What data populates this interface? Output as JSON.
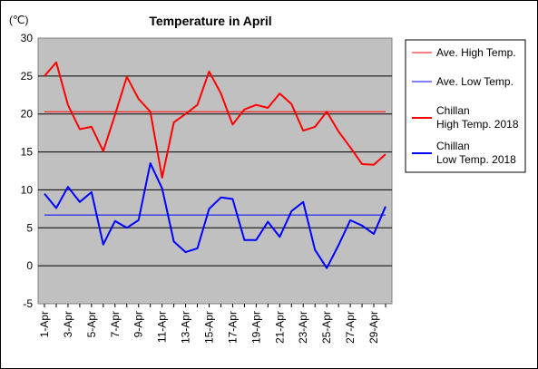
{
  "chart_data": {
    "type": "line",
    "title": "Temperature in April",
    "unit_label": "(℃)",
    "ylim": [
      -5,
      30
    ],
    "yticks": [
      -5,
      0,
      5,
      10,
      15,
      20,
      25,
      30
    ],
    "grid": true,
    "legend_position": "right",
    "x": [
      "1-Apr",
      "2-Apr",
      "3-Apr",
      "4-Apr",
      "5-Apr",
      "6-Apr",
      "7-Apr",
      "8-Apr",
      "9-Apr",
      "10-Apr",
      "11-Apr",
      "12-Apr",
      "13-Apr",
      "14-Apr",
      "15-Apr",
      "16-Apr",
      "17-Apr",
      "18-Apr",
      "19-Apr",
      "20-Apr",
      "21-Apr",
      "22-Apr",
      "23-Apr",
      "24-Apr",
      "25-Apr",
      "26-Apr",
      "27-Apr",
      "28-Apr",
      "29-Apr",
      "30-Apr"
    ],
    "xtick_labels": [
      "1-Apr",
      "3-Apr",
      "5-Apr",
      "7-Apr",
      "9-Apr",
      "11-Apr",
      "13-Apr",
      "15-Apr",
      "17-Apr",
      "19-Apr",
      "21-Apr",
      "23-Apr",
      "25-Apr",
      "27-Apr",
      "29-Apr"
    ],
    "series": [
      {
        "name": "Ave. High Temp.",
        "color": "#ff0000",
        "style": "thin",
        "values": [
          20.3,
          20.3,
          20.3,
          20.3,
          20.3,
          20.3,
          20.3,
          20.3,
          20.3,
          20.3,
          20.3,
          20.3,
          20.3,
          20.3,
          20.3,
          20.3,
          20.3,
          20.3,
          20.3,
          20.3,
          20.3,
          20.3,
          20.3,
          20.3,
          20.3,
          20.3,
          20.3,
          20.3,
          20.3,
          20.3
        ]
      },
      {
        "name": "Ave. Low Temp.",
        "color": "#0000ff",
        "style": "thin",
        "values": [
          6.7,
          6.7,
          6.7,
          6.7,
          6.7,
          6.7,
          6.7,
          6.7,
          6.7,
          6.7,
          6.7,
          6.7,
          6.7,
          6.7,
          6.7,
          6.7,
          6.7,
          6.7,
          6.7,
          6.7,
          6.7,
          6.7,
          6.7,
          6.7,
          6.7,
          6.7,
          6.7,
          6.7,
          6.7,
          6.7
        ]
      },
      {
        "name": "Chillan High Temp. 2018",
        "legend_lines": [
          "Chillan",
          "High Temp. 2018"
        ],
        "color": "#ff0000",
        "style": "thick",
        "values": [
          25.0,
          26.8,
          21.2,
          18.0,
          18.3,
          15.1,
          19.9,
          24.9,
          22.0,
          20.3,
          11.6,
          18.9,
          20.0,
          21.2,
          25.6,
          22.7,
          18.6,
          20.6,
          21.2,
          20.8,
          22.7,
          21.3,
          17.8,
          18.3,
          20.3,
          17.7,
          15.6,
          13.4,
          13.3,
          14.7
        ]
      },
      {
        "name": "Chillan Low Temp. 2018",
        "legend_lines": [
          "Chillan",
          "Low Temp. 2018"
        ],
        "color": "#0000ff",
        "style": "thick",
        "values": [
          9.5,
          7.6,
          10.4,
          8.4,
          9.7,
          2.8,
          5.9,
          5.0,
          6.0,
          13.5,
          10.2,
          3.2,
          1.8,
          2.3,
          7.5,
          9.0,
          8.8,
          3.4,
          3.4,
          5.8,
          3.8,
          7.2,
          8.4,
          2.1,
          -0.3,
          2.7,
          6.0,
          5.3,
          4.2,
          7.8
        ]
      }
    ]
  }
}
